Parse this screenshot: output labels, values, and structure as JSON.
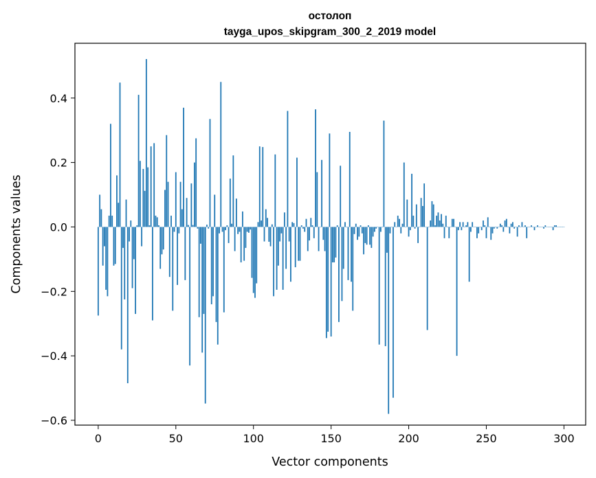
{
  "chart_data": {
    "type": "bar",
    "title_lines": [
      "остолоп",
      "tayga_upos_skipgram_300_2_2019 model"
    ],
    "xlabel": "Vector components",
    "ylabel": "Components values",
    "xlim": [
      -15,
      314
    ],
    "ylim": [
      -0.615,
      0.57
    ],
    "xticks": [
      0,
      50,
      100,
      150,
      200,
      250,
      300
    ],
    "yticks": [
      -0.6,
      -0.4,
      -0.2,
      0.0,
      0.2,
      0.4
    ],
    "xtick_labels": [
      "0",
      "50",
      "100",
      "150",
      "200",
      "250",
      "300"
    ],
    "ytick_labels": [
      "−0.6",
      "−0.4",
      "−0.2",
      "0.0",
      "0.2",
      "0.4"
    ],
    "bar_color": "#1f77b4",
    "values": [
      -0.275,
      0.1,
      0.055,
      -0.12,
      -0.06,
      -0.195,
      -0.215,
      0.035,
      0.32,
      0.035,
      -0.12,
      -0.115,
      0.16,
      0.075,
      0.448,
      -0.38,
      -0.065,
      -0.225,
      0.085,
      -0.485,
      -0.045,
      0.02,
      -0.19,
      -0.1,
      -0.27,
      0.005,
      0.41,
      0.205,
      -0.06,
      0.18,
      0.112,
      0.521,
      0.185,
      0.005,
      0.25,
      -0.29,
      0.26,
      0.035,
      0.03,
      0.005,
      -0.13,
      -0.085,
      -0.07,
      0.115,
      0.285,
      0.14,
      -0.155,
      0.035,
      -0.26,
      -0.015,
      0.17,
      -0.18,
      -0.02,
      0.14,
      0.055,
      0.37,
      -0.165,
      0.09,
      0.006,
      -0.43,
      0.135,
      0.006,
      0.2,
      0.275,
      -0.005,
      -0.28,
      -0.052,
      -0.39,
      -0.27,
      -0.548,
      0.007,
      -0.005,
      0.335,
      -0.24,
      -0.215,
      0.1,
      -0.295,
      -0.365,
      -0.02,
      0.45,
      -0.015,
      -0.265,
      -0.01,
      0.005,
      -0.05,
      0.15,
      0.01,
      0.222,
      -0.075,
      0.088,
      -0.022,
      -0.015,
      -0.11,
      0.048,
      -0.105,
      -0.065,
      -0.015,
      -0.018,
      -0.008,
      -0.158,
      -0.205,
      -0.22,
      -0.175,
      0.015,
      0.25,
      0.02,
      0.248,
      -0.045,
      0.055,
      0.028,
      -0.046,
      -0.06,
      0.008,
      -0.215,
      0.225,
      -0.195,
      -0.12,
      -0.045,
      -0.02,
      -0.195,
      0.045,
      -0.13,
      0.36,
      -0.045,
      -0.17,
      0.015,
      0.012,
      -0.125,
      0.215,
      -0.105,
      -0.105,
      0.005,
      -0.005,
      -0.015,
      0.025,
      -0.075,
      -0.042,
      0.028,
      0.005,
      -0.035,
      0.365,
      0.17,
      -0.075,
      0.0,
      0.208,
      -0.04,
      -0.075,
      -0.345,
      -0.325,
      0.29,
      -0.34,
      -0.11,
      -0.11,
      -0.095,
      0.005,
      -0.295,
      0.19,
      -0.23,
      -0.13,
      0.015,
      0.0,
      -0.165,
      0.295,
      -0.17,
      -0.26,
      -0.022,
      0.01,
      -0.04,
      -0.03,
      0.005,
      -0.02,
      -0.085,
      -0.05,
      -0.055,
      0.005,
      -0.055,
      -0.065,
      -0.03,
      -0.015,
      -0.005,
      0.0,
      -0.365,
      -0.015,
      0.0,
      0.33,
      -0.37,
      -0.08,
      -0.58,
      -0.02,
      0.0,
      -0.53,
      0.015,
      0.0,
      0.035,
      0.025,
      -0.02,
      0.01,
      0.2,
      0.0,
      0.085,
      -0.03,
      -0.01,
      0.165,
      0.035,
      -0.005,
      0.07,
      -0.05,
      0.0,
      0.09,
      0.065,
      0.135,
      0.0,
      -0.32,
      0.0,
      0.02,
      0.08,
      0.07,
      0.005,
      0.035,
      0.045,
      0.02,
      0.04,
      0.01,
      -0.035,
      0.035,
      0.0,
      -0.035,
      0.0,
      0.025,
      0.025,
      0.0,
      -0.4,
      -0.01,
      0.015,
      -0.01,
      0.015,
      0.0,
      0.005,
      0.015,
      -0.17,
      -0.015,
      0.015,
      0.0,
      0.0,
      -0.035,
      -0.02,
      0.0,
      -0.01,
      0.02,
      0.005,
      -0.035,
      0.03,
      0.0,
      -0.04,
      -0.02,
      -0.005,
      0.0,
      -0.005,
      0.0,
      0.01,
      0.005,
      -0.015,
      0.02,
      0.025,
      0.0,
      -0.02,
      0.01,
      0.015,
      -0.005,
      0.0,
      -0.03,
      0.005,
      0.0,
      0.015,
      0.0,
      0.005,
      -0.035,
      0.0,
      0.0,
      0.005,
      0.0,
      -0.01,
      0.0,
      0.005,
      0.0,
      0.0,
      0.0,
      -0.005,
      0.005,
      0.0,
      0.0,
      0.0,
      0.0,
      -0.01,
      0.005,
      0.005,
      0.0,
      0.0,
      0.0,
      0.0,
      0.0
    ]
  }
}
